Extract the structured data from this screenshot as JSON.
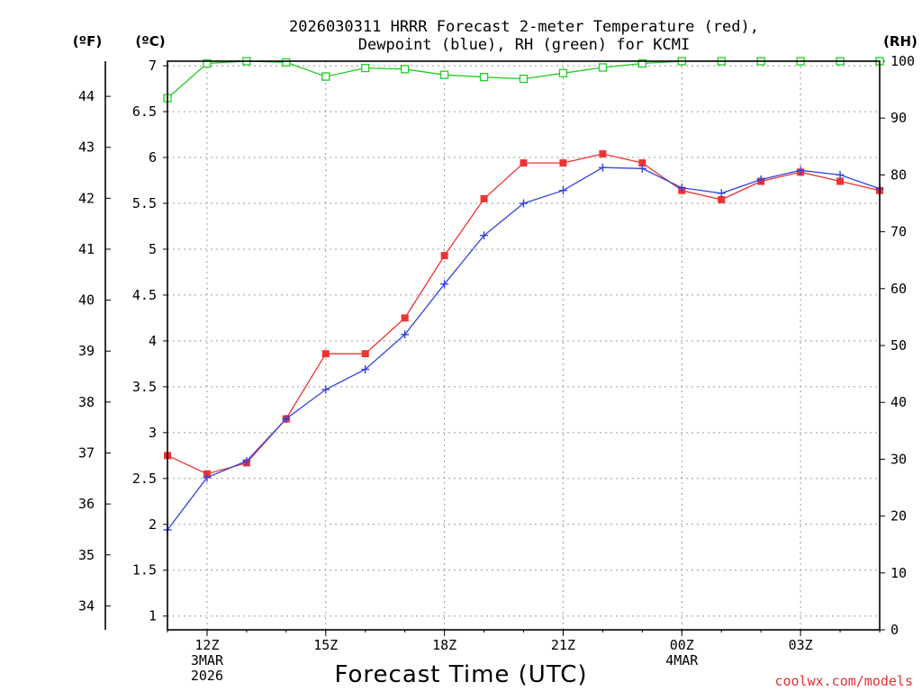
{
  "colors": {
    "temperature": "#ee3333",
    "dewpoint": "#3344dd",
    "rh": "#22cc22",
    "grid": "#999999",
    "credit": "#dd3333"
  },
  "chart_data": {
    "type": "line",
    "title": [
      "2026030311 HRRR Forecast 2-meter Temperature (red),",
      "Dewpoint (blue), RH (green) for KCMI"
    ],
    "xlabel": "Forecast Time (UTC)",
    "credit": "coolwx.com/models",
    "units": {
      "fahrenheit": "(ºF)",
      "celsius": "(ºC)",
      "rh": "(RH)"
    },
    "x_hours": [
      11,
      12,
      13,
      14,
      15,
      16,
      17,
      18,
      19,
      20,
      21,
      22,
      23,
      24,
      25,
      26,
      27,
      28,
      29
    ],
    "x_ticks": [
      {
        "hour": 12,
        "lines": [
          "12Z",
          "3MAR",
          "2026"
        ]
      },
      {
        "hour": 15,
        "lines": [
          "15Z"
        ]
      },
      {
        "hour": 18,
        "lines": [
          "18Z"
        ]
      },
      {
        "hour": 21,
        "lines": [
          "21Z"
        ]
      },
      {
        "hour": 24,
        "lines": [
          "00Z",
          "4MAR"
        ]
      },
      {
        "hour": 27,
        "lines": [
          "03Z"
        ]
      }
    ],
    "xlim": [
      11,
      29
    ],
    "y_celsius": {
      "range": [
        0.85,
        7.05
      ],
      "ticks": [
        "1",
        "1.5",
        "2",
        "2.5",
        "3",
        "3.5",
        "4",
        "4.5",
        "5",
        "5.5",
        "6",
        "6.5",
        "7"
      ]
    },
    "y_fahrenheit": {
      "ticks": [
        "34",
        "35",
        "36",
        "37",
        "38",
        "39",
        "40",
        "41",
        "42",
        "43",
        "44"
      ]
    },
    "y_rh": {
      "range": [
        0,
        100
      ],
      "ticks": [
        "0",
        "10",
        "20",
        "30",
        "40",
        "50",
        "60",
        "70",
        "80",
        "90",
        "100"
      ]
    },
    "series": [
      {
        "name": "Temperature (red)",
        "axis": "celsius",
        "marker": "filled-square",
        "values": [
          2.75,
          2.55,
          2.67,
          3.15,
          3.86,
          3.86,
          4.25,
          4.93,
          5.55,
          5.94,
          5.94,
          6.04,
          5.94,
          5.64,
          5.54,
          5.74,
          5.84,
          5.74,
          5.64
        ]
      },
      {
        "name": "Dewpoint (blue)",
        "axis": "celsius",
        "marker": "plus",
        "values": [
          1.94,
          2.51,
          2.69,
          3.15,
          3.47,
          3.69,
          4.07,
          4.62,
          5.15,
          5.5,
          5.64,
          5.89,
          5.88,
          5.67,
          5.61,
          5.76,
          5.86,
          5.81,
          5.66
        ]
      },
      {
        "name": "RH (green)",
        "axis": "rh",
        "marker": "open-square",
        "values": [
          93.5,
          99.6,
          100,
          99.8,
          97.3,
          98.8,
          98.6,
          97.6,
          97.2,
          96.9,
          97.9,
          98.9,
          99.6,
          100,
          100,
          100,
          100,
          100,
          100
        ]
      }
    ]
  }
}
